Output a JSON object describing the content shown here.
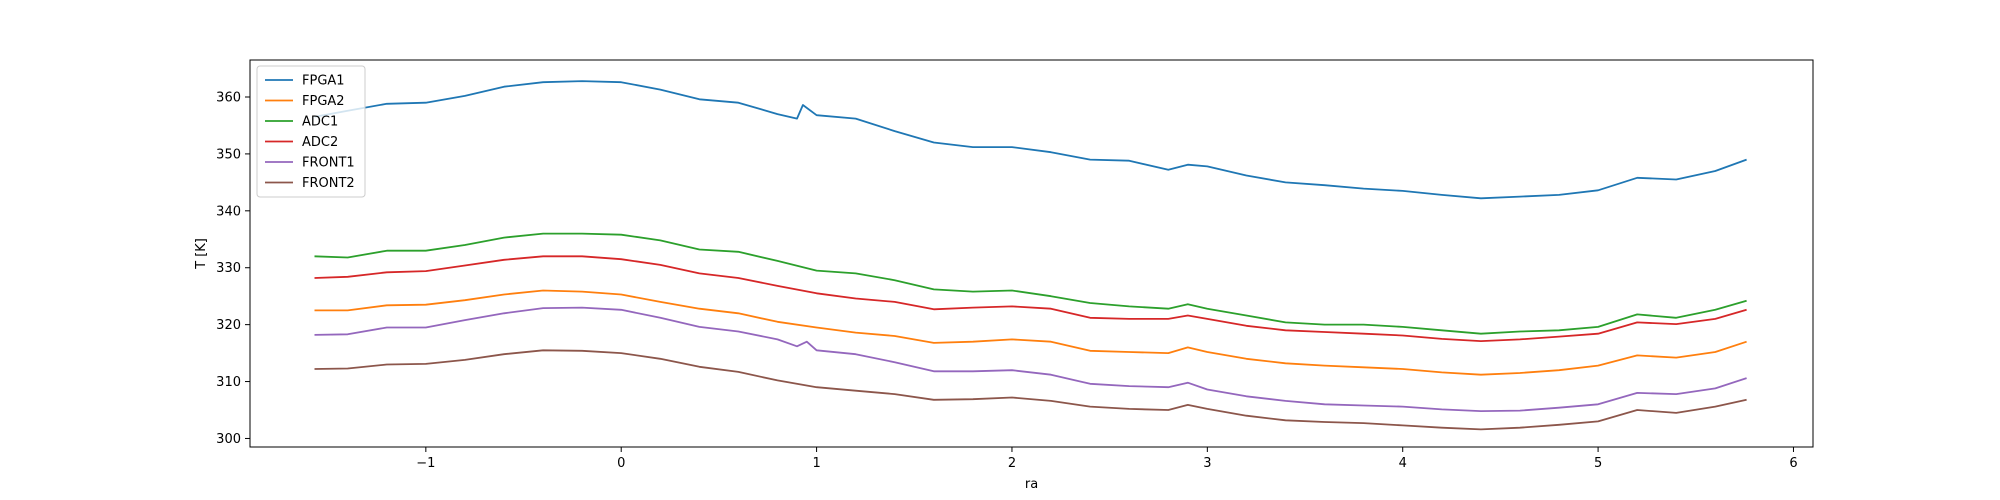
{
  "chart_data": {
    "type": "line",
    "xlabel": "ra",
    "ylabel": "T [K]",
    "xlim": [
      -1.9,
      6.1
    ],
    "ylim": [
      298.5,
      366.5
    ],
    "xticks": [
      -1,
      0,
      1,
      2,
      3,
      4,
      5,
      6
    ],
    "xtick_labels": [
      "−1",
      "0",
      "1",
      "2",
      "3",
      "4",
      "5",
      "6"
    ],
    "yticks": [
      300,
      310,
      320,
      330,
      340,
      350,
      360
    ],
    "ytick_labels": [
      "300",
      "310",
      "320",
      "330",
      "340",
      "350",
      "360"
    ],
    "grid": false,
    "legend": "top-left",
    "series": [
      {
        "name": "FPGA1",
        "color": "#1f77b4",
        "x": [
          -1.57,
          -1.4,
          -1.2,
          -1.0,
          -0.8,
          -0.6,
          -0.4,
          -0.2,
          0.0,
          0.2,
          0.4,
          0.6,
          0.8,
          0.9,
          0.93,
          1.0,
          1.2,
          1.4,
          1.6,
          1.8,
          2.0,
          2.2,
          2.4,
          2.6,
          2.8,
          2.9,
          3.0,
          3.2,
          3.4,
          3.6,
          3.8,
          4.0,
          4.2,
          4.4,
          4.6,
          4.8,
          5.0,
          5.2,
          5.4,
          5.6,
          5.76
        ],
        "y": [
          356.5,
          357.6,
          358.8,
          359.0,
          360.2,
          361.8,
          362.6,
          362.8,
          362.6,
          361.3,
          359.6,
          359.0,
          357.0,
          356.2,
          358.6,
          356.8,
          356.2,
          354.0,
          352.0,
          351.2,
          351.2,
          350.3,
          349.0,
          348.8,
          347.2,
          348.1,
          347.8,
          346.2,
          345.0,
          344.5,
          343.9,
          343.5,
          342.8,
          342.2,
          342.5,
          342.8,
          343.6,
          345.8,
          345.5,
          347.0,
          349.0
        ]
      },
      {
        "name": "FPGA2",
        "color": "#ff7f0e",
        "x": [
          -1.57,
          -1.4,
          -1.2,
          -1.0,
          -0.8,
          -0.6,
          -0.4,
          -0.2,
          0.0,
          0.2,
          0.4,
          0.6,
          0.8,
          1.0,
          1.2,
          1.4,
          1.6,
          1.8,
          2.0,
          2.2,
          2.4,
          2.6,
          2.8,
          2.9,
          3.0,
          3.2,
          3.4,
          3.6,
          3.8,
          4.0,
          4.2,
          4.4,
          4.6,
          4.8,
          5.0,
          5.2,
          5.4,
          5.6,
          5.76
        ],
        "y": [
          322.5,
          322.5,
          323.4,
          323.5,
          324.3,
          325.3,
          326.0,
          325.8,
          325.3,
          324.0,
          322.8,
          322.0,
          320.5,
          319.5,
          318.6,
          318.0,
          316.8,
          317.0,
          317.4,
          317.0,
          315.4,
          315.2,
          315.0,
          316.0,
          315.2,
          314.0,
          313.2,
          312.8,
          312.5,
          312.2,
          311.6,
          311.2,
          311.5,
          312.0,
          312.8,
          314.6,
          314.2,
          315.2,
          317.0
        ]
      },
      {
        "name": "ADC1",
        "color": "#2ca02c",
        "x": [
          -1.57,
          -1.4,
          -1.2,
          -1.0,
          -0.8,
          -0.6,
          -0.4,
          -0.2,
          0.0,
          0.2,
          0.4,
          0.6,
          0.8,
          1.0,
          1.2,
          1.4,
          1.6,
          1.8,
          2.0,
          2.2,
          2.4,
          2.6,
          2.8,
          2.9,
          3.0,
          3.2,
          3.4,
          3.6,
          3.8,
          4.0,
          4.2,
          4.4,
          4.6,
          4.8,
          5.0,
          5.2,
          5.4,
          5.6,
          5.76
        ],
        "y": [
          332.0,
          331.8,
          333.0,
          333.0,
          334.0,
          335.3,
          336.0,
          336.0,
          335.8,
          334.8,
          333.2,
          332.8,
          331.2,
          329.5,
          329.0,
          327.8,
          326.2,
          325.8,
          326.0,
          325.0,
          323.8,
          323.2,
          322.8,
          323.6,
          322.8,
          321.6,
          320.4,
          320.0,
          320.0,
          319.6,
          319.0,
          318.4,
          318.8,
          319.0,
          319.6,
          321.8,
          321.2,
          322.6,
          324.2
        ]
      },
      {
        "name": "ADC2",
        "color": "#d62728",
        "x": [
          -1.57,
          -1.4,
          -1.2,
          -1.0,
          -0.8,
          -0.6,
          -0.4,
          -0.2,
          0.0,
          0.2,
          0.4,
          0.6,
          0.8,
          1.0,
          1.2,
          1.4,
          1.6,
          1.8,
          2.0,
          2.2,
          2.4,
          2.6,
          2.8,
          2.9,
          3.0,
          3.2,
          3.4,
          3.6,
          3.8,
          4.0,
          4.2,
          4.4,
          4.6,
          4.8,
          5.0,
          5.2,
          5.4,
          5.6,
          5.76
        ],
        "y": [
          328.2,
          328.4,
          329.2,
          329.4,
          330.4,
          331.4,
          332.0,
          332.0,
          331.5,
          330.5,
          329.0,
          328.2,
          326.8,
          325.5,
          324.6,
          324.0,
          322.7,
          323.0,
          323.2,
          322.8,
          321.2,
          321.0,
          321.0,
          321.6,
          321.0,
          319.8,
          319.0,
          318.7,
          318.4,
          318.1,
          317.5,
          317.1,
          317.4,
          317.9,
          318.4,
          320.4,
          320.1,
          321.0,
          322.6
        ]
      },
      {
        "name": "FRONT1",
        "color": "#9467bd",
        "x": [
          -1.57,
          -1.4,
          -1.2,
          -1.0,
          -0.8,
          -0.6,
          -0.4,
          -0.2,
          0.0,
          0.2,
          0.4,
          0.6,
          0.8,
          0.9,
          0.95,
          1.0,
          1.2,
          1.4,
          1.6,
          1.8,
          2.0,
          2.2,
          2.4,
          2.6,
          2.8,
          2.9,
          3.0,
          3.2,
          3.4,
          3.6,
          3.8,
          4.0,
          4.2,
          4.4,
          4.6,
          4.8,
          5.0,
          5.2,
          5.4,
          5.6,
          5.76
        ],
        "y": [
          318.2,
          318.3,
          319.5,
          319.5,
          320.8,
          322.0,
          322.9,
          323.0,
          322.6,
          321.2,
          319.6,
          318.8,
          317.4,
          316.2,
          317.0,
          315.5,
          314.8,
          313.4,
          311.8,
          311.8,
          312.0,
          311.2,
          309.6,
          309.2,
          309.0,
          309.8,
          308.6,
          307.4,
          306.6,
          306.0,
          305.8,
          305.6,
          305.1,
          304.8,
          304.9,
          305.4,
          306.0,
          308.0,
          307.8,
          308.8,
          310.6
        ]
      },
      {
        "name": "FRONT2",
        "color": "#8c564b",
        "x": [
          -1.57,
          -1.4,
          -1.2,
          -1.0,
          -0.8,
          -0.6,
          -0.4,
          -0.2,
          0.0,
          0.2,
          0.4,
          0.6,
          0.8,
          1.0,
          1.2,
          1.4,
          1.6,
          1.8,
          2.0,
          2.2,
          2.4,
          2.6,
          2.8,
          2.9,
          3.0,
          3.2,
          3.4,
          3.6,
          3.8,
          4.0,
          4.2,
          4.4,
          4.6,
          4.8,
          5.0,
          5.2,
          5.4,
          5.6,
          5.76
        ],
        "y": [
          312.2,
          312.3,
          313.0,
          313.1,
          313.8,
          314.8,
          315.5,
          315.4,
          315.0,
          314.0,
          312.6,
          311.7,
          310.2,
          309.0,
          308.4,
          307.8,
          306.8,
          306.9,
          307.2,
          306.6,
          305.6,
          305.2,
          305.0,
          305.9,
          305.2,
          304.0,
          303.2,
          302.9,
          302.7,
          302.3,
          301.9,
          301.6,
          301.9,
          302.4,
          303.0,
          305.0,
          304.5,
          305.6,
          306.8
        ]
      }
    ]
  }
}
